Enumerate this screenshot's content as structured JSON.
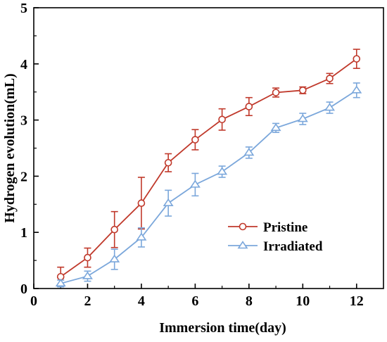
{
  "chart_data": {
    "type": "line",
    "title": "",
    "xlabel": "Immersion time(day)",
    "ylabel": "Hydrogen evolution(mL)",
    "xlim": [
      0,
      13
    ],
    "ylim": [
      0,
      5
    ],
    "xticks": [
      0,
      2,
      4,
      6,
      8,
      10,
      12
    ],
    "yticks": [
      0,
      1,
      2,
      3,
      4,
      5
    ],
    "grid": false,
    "legend_position": "lower-right",
    "x": [
      1,
      2,
      3,
      4,
      5,
      6,
      7,
      8,
      9,
      10,
      11,
      12
    ],
    "series": [
      {
        "name": "Pristine",
        "marker": "circle",
        "color": "#C0392B",
        "values": [
          0.21,
          0.55,
          1.05,
          1.52,
          2.24,
          2.65,
          3.01,
          3.24,
          3.49,
          3.53,
          3.74,
          4.09
        ],
        "errors": [
          0.17,
          0.17,
          0.32,
          0.46,
          0.16,
          0.18,
          0.19,
          0.16,
          0.08,
          0.06,
          0.09,
          0.17
        ]
      },
      {
        "name": "Irradiated",
        "marker": "triangle",
        "color": "#7BA7DB",
        "values": [
          0.09,
          0.22,
          0.52,
          0.91,
          1.52,
          1.85,
          2.08,
          2.42,
          2.86,
          3.02,
          3.22,
          3.53
        ]
      }
    ],
    "irradiated_errors": [
      0.06,
      0.09,
      0.18,
      0.17,
      0.23,
      0.2,
      0.1,
      0.1,
      0.08,
      0.1,
      0.1,
      0.13
    ]
  }
}
